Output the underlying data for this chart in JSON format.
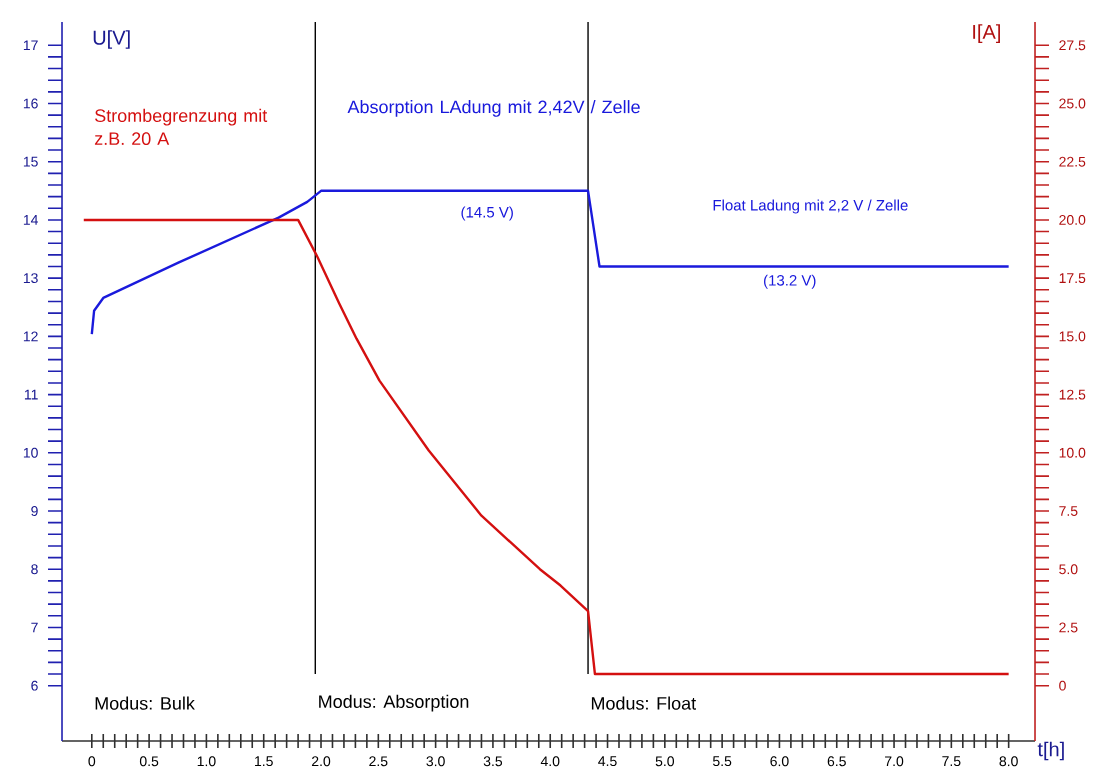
{
  "chart_data": {
    "type": "line",
    "xlabel": "t[h]",
    "ylabel": "U[V]",
    "y2label": "I[A]",
    "xlim": [
      -0.26,
      8.23
    ],
    "xticks": [
      0,
      {
        "value": 0.1,
        "label": null
      },
      {
        "value": 0.2,
        "label": null
      },
      {
        "value": 0.3,
        "label": null
      },
      {
        "value": 0.4,
        "label": null
      },
      0.5,
      {
        "value": 0.6,
        "label": null
      },
      {
        "value": 0.7,
        "label": null
      },
      {
        "value": 0.8,
        "label": null
      },
      {
        "value": 0.9,
        "label": null
      },
      {
        "value": 1,
        "label": "1.0"
      },
      {
        "value": 1.1,
        "label": null
      },
      {
        "value": 1.2,
        "label": null
      },
      {
        "value": 1.3,
        "label": null
      },
      {
        "value": 1.4,
        "label": null
      },
      1.5,
      {
        "value": 1.6,
        "label": null
      },
      {
        "value": 1.7,
        "label": null
      },
      {
        "value": 1.8,
        "label": null
      },
      {
        "value": 1.9,
        "label": null
      },
      {
        "value": 2,
        "label": "2.0"
      },
      {
        "value": 2.1,
        "label": null
      },
      {
        "value": 2.2,
        "label": null
      },
      {
        "value": 2.3,
        "label": null
      },
      {
        "value": 2.4,
        "label": null
      },
      2.5,
      {
        "value": 2.6,
        "label": null
      },
      {
        "value": 2.7,
        "label": null
      },
      {
        "value": 2.8,
        "label": null
      },
      {
        "value": 2.9,
        "label": null
      },
      {
        "value": 3,
        "label": "3.0"
      },
      {
        "value": 3.1,
        "label": null
      },
      {
        "value": 3.2,
        "label": null
      },
      {
        "value": 3.3,
        "label": null
      },
      {
        "value": 3.4,
        "label": null
      },
      3.5,
      {
        "value": 3.6,
        "label": null
      },
      {
        "value": 3.7,
        "label": null
      },
      {
        "value": 3.8,
        "label": null
      },
      {
        "value": 3.9,
        "label": null
      },
      {
        "value": 4,
        "label": "4.0"
      },
      {
        "value": 4.1,
        "label": null
      },
      {
        "value": 4.2,
        "label": null
      },
      {
        "value": 4.3,
        "label": null
      },
      {
        "value": 4.4,
        "label": null
      },
      4.5,
      {
        "value": 4.6,
        "label": null
      },
      {
        "value": 4.7,
        "label": null
      },
      {
        "value": 4.8,
        "label": null
      },
      {
        "value": 4.9,
        "label": null
      },
      {
        "value": 5,
        "label": "5.0"
      },
      {
        "value": 5.1,
        "label": null
      },
      {
        "value": 5.2,
        "label": null
      },
      {
        "value": 5.3,
        "label": null
      },
      {
        "value": 5.4,
        "label": null
      },
      5.5,
      {
        "value": 5.6,
        "label": null
      },
      {
        "value": 5.7,
        "label": null
      },
      {
        "value": 5.8,
        "label": null
      },
      {
        "value": 5.9,
        "label": null
      },
      {
        "value": 6,
        "label": "6.0"
      },
      {
        "value": 6.1,
        "label": null
      },
      {
        "value": 6.2,
        "label": null
      },
      {
        "value": 6.3,
        "label": null
      },
      {
        "value": 6.4,
        "label": null
      },
      6.5,
      {
        "value": 6.6,
        "label": null
      },
      {
        "value": 6.7,
        "label": null
      },
      {
        "value": 6.8,
        "label": null
      },
      {
        "value": 6.9,
        "label": null
      },
      {
        "value": 7,
        "label": "7.0"
      },
      {
        "value": 7.1,
        "label": null
      },
      {
        "value": 7.2,
        "label": null
      },
      {
        "value": 7.3,
        "label": null
      },
      {
        "value": 7.4,
        "label": null
      },
      7.5,
      {
        "value": 7.6,
        "label": null
      },
      {
        "value": 7.7,
        "label": null
      },
      {
        "value": 7.8,
        "label": null
      },
      {
        "value": 7.9,
        "label": null
      },
      {
        "value": 8,
        "label": "8.0"
      }
    ],
    "ylim": [
      5.05,
      17.4
    ],
    "yticks": [
      6,
      {
        "value": 6.2,
        "label": null
      },
      {
        "value": 6.4,
        "label": null
      },
      {
        "value": 6.6,
        "label": null
      },
      {
        "value": 6.8,
        "label": null
      },
      7,
      {
        "value": 7.2,
        "label": null
      },
      {
        "value": 7.4,
        "label": null
      },
      {
        "value": 7.6,
        "label": null
      },
      {
        "value": 7.8,
        "label": null
      },
      8,
      {
        "value": 8.2,
        "label": null
      },
      {
        "value": 8.4,
        "label": null
      },
      {
        "value": 8.6,
        "label": null
      },
      {
        "value": 8.8,
        "label": null
      },
      9,
      {
        "value": 9.2,
        "label": null
      },
      {
        "value": 9.4,
        "label": null
      },
      {
        "value": 9.6,
        "label": null
      },
      {
        "value": 9.8,
        "label": null
      },
      10,
      {
        "value": 10.2,
        "label": null
      },
      {
        "value": 10.4,
        "label": null
      },
      {
        "value": 10.6,
        "label": null
      },
      {
        "value": 10.8,
        "label": null
      },
      11,
      {
        "value": 11.2,
        "label": null
      },
      {
        "value": 11.4,
        "label": null
      },
      {
        "value": 11.6,
        "label": null
      },
      {
        "value": 11.8,
        "label": null
      },
      12,
      {
        "value": 12.2,
        "label": null
      },
      {
        "value": 12.4,
        "label": null
      },
      {
        "value": 12.6,
        "label": null
      },
      {
        "value": 12.8,
        "label": null
      },
      13,
      {
        "value": 13.2,
        "label": null
      },
      {
        "value": 13.4,
        "label": null
      },
      {
        "value": 13.6,
        "label": null
      },
      {
        "value": 13.8,
        "label": null
      },
      14,
      {
        "value": 14.2,
        "label": null
      },
      {
        "value": 14.4,
        "label": null
      },
      {
        "value": 14.6,
        "label": null
      },
      {
        "value": 14.8,
        "label": null
      },
      15,
      {
        "value": 15.2,
        "label": null
      },
      {
        "value": 15.4,
        "label": null
      },
      {
        "value": 15.6,
        "label": null
      },
      {
        "value": 15.8,
        "label": null
      },
      16,
      {
        "value": 16.2,
        "label": null
      },
      {
        "value": 16.4,
        "label": null
      },
      {
        "value": 16.6,
        "label": null
      },
      {
        "value": 16.8,
        "label": null
      },
      17
    ],
    "y2lim": [
      -2.375,
      28.5
    ],
    "y2ticks": [
      0,
      {
        "value": 0.5,
        "label": null
      },
      {
        "value": 1,
        "label": null
      },
      {
        "value": 1.5,
        "label": null
      },
      {
        "value": 2,
        "label": null
      },
      {
        "value": 2.5,
        "label": "2.5"
      },
      {
        "value": 3,
        "label": null
      },
      {
        "value": 3.5,
        "label": null
      },
      {
        "value": 4,
        "label": null
      },
      {
        "value": 4.5,
        "label": null
      },
      {
        "value": 5,
        "label": "5.0"
      },
      {
        "value": 5.5,
        "label": null
      },
      {
        "value": 6,
        "label": null
      },
      {
        "value": 6.5,
        "label": null
      },
      {
        "value": 7,
        "label": null
      },
      {
        "value": 7.5,
        "label": "7.5"
      },
      {
        "value": 8,
        "label": null
      },
      {
        "value": 8.5,
        "label": null
      },
      {
        "value": 9,
        "label": null
      },
      {
        "value": 9.5,
        "label": null
      },
      {
        "value": 10,
        "label": "10.0"
      },
      {
        "value": 10.5,
        "label": null
      },
      {
        "value": 11,
        "label": null
      },
      {
        "value": 11.5,
        "label": null
      },
      {
        "value": 12,
        "label": null
      },
      {
        "value": 12.5,
        "label": "12.5"
      },
      {
        "value": 13,
        "label": null
      },
      {
        "value": 13.5,
        "label": null
      },
      {
        "value": 14,
        "label": null
      },
      {
        "value": 14.5,
        "label": null
      },
      {
        "value": 15,
        "label": "15.0"
      },
      {
        "value": 15.5,
        "label": null
      },
      {
        "value": 16,
        "label": null
      },
      {
        "value": 16.5,
        "label": null
      },
      {
        "value": 17,
        "label": null
      },
      {
        "value": 17.5,
        "label": "17.5"
      },
      {
        "value": 18,
        "label": null
      },
      {
        "value": 18.5,
        "label": null
      },
      {
        "value": 19,
        "label": null
      },
      {
        "value": 19.5,
        "label": null
      },
      {
        "value": 20,
        "label": "20.0"
      },
      {
        "value": 20.5,
        "label": null
      },
      {
        "value": 21,
        "label": null
      },
      {
        "value": 21.5,
        "label": null
      },
      {
        "value": 22,
        "label": null
      },
      {
        "value": 22.5,
        "label": "22.5"
      },
      {
        "value": 23,
        "label": null
      },
      {
        "value": 23.5,
        "label": null
      },
      {
        "value": 24,
        "label": null
      },
      {
        "value": 24.5,
        "label": null
      },
      {
        "value": 25,
        "label": "25.0"
      },
      {
        "value": 25.5,
        "label": null
      },
      {
        "value": 26,
        "label": null
      },
      {
        "value": 26.5,
        "label": null
      },
      {
        "value": 27,
        "label": null
      },
      {
        "value": 27.5,
        "label": "27.5"
      }
    ],
    "series": [
      {
        "color": "#1a1adc",
        "x": [
          0,
          0.02,
          0.1,
          0.76,
          1.63,
          1.88,
          2.0,
          4.33,
          4.43,
          8.0
        ],
        "values": [
          12.04,
          12.44,
          12.66,
          13.27,
          14.04,
          14.31,
          14.5,
          14.5,
          13.2,
          13.2
        ]
      },
      {
        "color": "#d41010",
        "axis": "y2",
        "x": [
          -0.07,
          1.8,
          1.97,
          2.16,
          2.31,
          2.51,
          2.94,
          3.4,
          3.91,
          4.09,
          4.33,
          4.39,
          8.0
        ],
        "values": [
          20,
          20,
          18.4,
          16.4,
          14.9,
          13.1,
          10.1,
          7.3,
          5.0,
          4.3,
          3.2,
          0.5,
          0.5
        ]
      }
    ],
    "ref_lines": [
      {
        "axis": "x",
        "value": 1.95,
        "label": "Modus: Absorption",
        "color": "#000000"
      },
      {
        "axis": "x",
        "value": 4.33,
        "label": "Modus: Float",
        "color": "#000000"
      }
    ],
    "annotations": [
      "Strombegrenzung mit z.B. 20 A",
      "Absorption LAdung mit 2,42V / Zelle",
      "(14.5 V)",
      "Float Ladung mit 2,2 V / Zelle",
      "(13.2 V)",
      "Modus: Bulk"
    ]
  }
}
